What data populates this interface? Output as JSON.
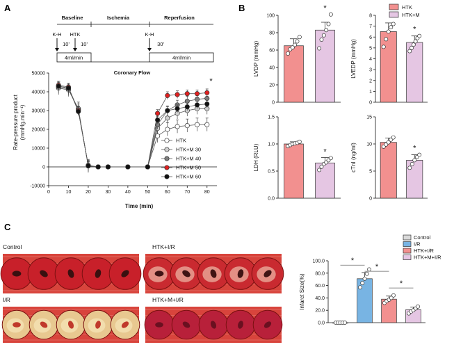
{
  "panels": {
    "a": "A",
    "b": "B",
    "c": "C"
  },
  "protocol": {
    "phases": [
      "Baseline",
      "Ischemia",
      "Reperfusion"
    ],
    "markers": [
      "K-H",
      "HTK",
      "K-H"
    ],
    "durations": [
      "10'",
      "10'",
      "30'"
    ],
    "flow_labels": [
      "4ml/min",
      "4ml/min"
    ]
  },
  "chart_data": [
    {
      "id": "A",
      "type": "line",
      "title": "Coronary Flow",
      "xlabel": "Time (min)",
      "ylabel": "Rate-pressure product",
      "ylabel_units": "(mmHg.min⁻¹)",
      "xlim": [
        0,
        85
      ],
      "ylim": [
        -10000,
        50000
      ],
      "xticks": [
        0,
        10,
        20,
        30,
        40,
        50,
        60,
        70,
        80
      ],
      "yticks": [
        -10000,
        0,
        10000,
        20000,
        30000,
        40000,
        50000
      ],
      "x": [
        5,
        10,
        15,
        20,
        25,
        30,
        40,
        50,
        55,
        60,
        65,
        70,
        75,
        80
      ],
      "series": [
        {
          "name": "HTK",
          "color": "#ffffff",
          "values": [
            42000,
            41000,
            31000,
            500,
            0,
            0,
            0,
            0,
            16500,
            20000,
            21500,
            22000,
            22500,
            22500
          ],
          "err": 3500
        },
        {
          "name": "HTK+M 30",
          "color": "#cfcfcf",
          "values": [
            42500,
            41500,
            30500,
            500,
            0,
            0,
            0,
            0,
            20500,
            26000,
            28500,
            30000,
            31000,
            31000
          ],
          "err": 3000
        },
        {
          "name": "HTK+M 40",
          "color": "#7d7d7d",
          "values": [
            43000,
            42000,
            30000,
            800,
            0,
            0,
            0,
            0,
            22500,
            30000,
            33000,
            35000,
            36000,
            36500
          ],
          "err": 2500
        },
        {
          "name": "HTK+M 50",
          "color": "#e02020",
          "values": [
            43500,
            42500,
            30000,
            800,
            0,
            0,
            0,
            0,
            28500,
            38000,
            38500,
            39000,
            39000,
            39500
          ],
          "err": 2000
        },
        {
          "name": "HTK+M 60",
          "color": "#111111",
          "values": [
            43000,
            42000,
            29500,
            600,
            0,
            0,
            0,
            0,
            25000,
            30000,
            31000,
            32000,
            33000,
            33500
          ],
          "err": 2000
        }
      ],
      "annotations": [
        "*"
      ]
    },
    {
      "id": "B-LVDP",
      "type": "bar",
      "ylabel": "LVDP (mmHg)",
      "ylim": [
        0,
        100
      ],
      "yticks": [
        0,
        20,
        40,
        60,
        80,
        100
      ],
      "categories": [
        "HTK",
        "HTK+M"
      ],
      "values": [
        65,
        83
      ],
      "sd": [
        8,
        9
      ],
      "points": [
        [
          56,
          61,
          63,
          66,
          70,
          75
        ],
        [
          62,
          72,
          77,
          83,
          90,
          101
        ]
      ],
      "annotations": [
        "*"
      ]
    },
    {
      "id": "B-LVEDP",
      "type": "bar",
      "ylabel": "LVEDP (mmHg)",
      "ylim": [
        0,
        8
      ],
      "yticks": [
        0,
        1,
        2,
        3,
        4,
        5,
        6,
        7,
        8
      ],
      "categories": [
        "HTK",
        "HTK+M"
      ],
      "values": [
        6.5,
        5.5
      ],
      "sd": [
        0.8,
        0.6
      ],
      "points": [
        [
          5.1,
          5.8,
          6.5,
          6.9,
          7.2
        ],
        [
          4.7,
          5.0,
          5.3,
          5.6,
          5.9,
          6.1
        ]
      ],
      "annotations": [
        "*"
      ]
    },
    {
      "id": "B-LDH",
      "type": "bar",
      "ylabel": "LDH (RLU)",
      "ylim": [
        0,
        1.5
      ],
      "yticks": [
        0,
        0.5,
        1.0,
        1.5
      ],
      "ytick_labels": [
        "0.0",
        "0.5",
        "1.0",
        "1.5"
      ],
      "categories": [
        "HTK",
        "HTK+M"
      ],
      "values": [
        1.0,
        0.65
      ],
      "sd": [
        0.04,
        0.1
      ],
      "points": [
        [
          0.96,
          0.98,
          1.0,
          1.01,
          1.02,
          1.04
        ],
        [
          0.52,
          0.58,
          0.63,
          0.66,
          0.7,
          0.74
        ]
      ],
      "annotations": [
        "*"
      ]
    },
    {
      "id": "B-cTnI",
      "type": "bar",
      "ylabel": "cTnI (ng/ml)",
      "ylim": [
        0,
        15
      ],
      "yticks": [
        0,
        5,
        10,
        15
      ],
      "categories": [
        "HTK",
        "HTK+M"
      ],
      "values": [
        10.3,
        7.0
      ],
      "sd": [
        0.8,
        1.0
      ],
      "points": [
        [
          9.5,
          9.9,
          10.3,
          10.8,
          11.2
        ],
        [
          5.6,
          6.3,
          7.0,
          7.6,
          8.0
        ]
      ],
      "annotations": [
        "*"
      ]
    },
    {
      "id": "C",
      "type": "bar",
      "ylabel": "Infarct Size(%)",
      "ylim": [
        0,
        100
      ],
      "yticks": [
        0,
        20,
        40,
        60,
        80,
        100
      ],
      "ytick_labels": [
        "0.0",
        "20.0",
        "40.0",
        "60.0",
        "80.0",
        "100.0"
      ],
      "categories": [
        "Control",
        "I/R",
        "HTK+I/R",
        "HTK+M+I/R"
      ],
      "values": [
        0,
        71,
        38,
        21
      ],
      "sd": [
        0.5,
        10,
        5,
        4
      ],
      "points": [
        [
          0,
          0,
          0,
          0,
          0
        ],
        [
          57,
          64,
          71,
          79,
          86
        ],
        [
          32,
          35,
          37,
          40,
          44
        ],
        [
          15,
          18,
          20,
          23,
          26
        ]
      ],
      "annotations": [
        "*",
        "*",
        "*"
      ]
    }
  ],
  "panel_b_legend": [
    {
      "label": "HTK",
      "color": "#f2908f"
    },
    {
      "label": "HTK+M",
      "color": "#e5c6e3"
    }
  ],
  "panel_c_legend": [
    {
      "label": "Control",
      "color": "#d9d9d9"
    },
    {
      "label": "I/R",
      "color": "#78b4e3"
    },
    {
      "label": "HTK+I/R",
      "color": "#f2908f"
    },
    {
      "label": "HTK+M+I/R",
      "color": "#e5c6e3"
    }
  ],
  "photos": [
    {
      "label": "Control",
      "tissue": "#c8202a",
      "core": "#3a1010",
      "pale": false
    },
    {
      "label": "HTK+I/R",
      "tissue": "#c92a30",
      "core": "#401414",
      "pale": true
    },
    {
      "label": "I/R",
      "tissue": "#e8c890",
      "core": "#c0392b",
      "pale": true
    },
    {
      "label": "HTK+M+I/R",
      "tissue": "#b8203a",
      "core": "#6a1020",
      "pale": false
    }
  ]
}
